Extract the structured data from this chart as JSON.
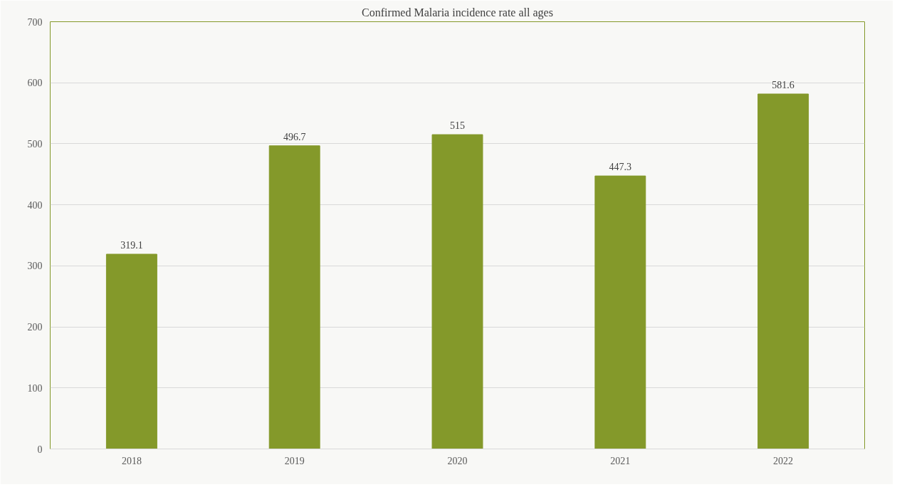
{
  "chart_data": {
    "type": "bar",
    "title": "Confirmed Malaria incidence rate all ages",
    "categories": [
      "2018",
      "2019",
      "2020",
      "2021",
      "2022"
    ],
    "values": [
      319.1,
      496.7,
      515,
      447.3,
      581.6
    ],
    "color": "#84992a",
    "ylim": [
      0,
      700
    ],
    "yticks": [
      0,
      100,
      200,
      300,
      400,
      500,
      600,
      700
    ],
    "grid": "y",
    "data_labels": true
  }
}
